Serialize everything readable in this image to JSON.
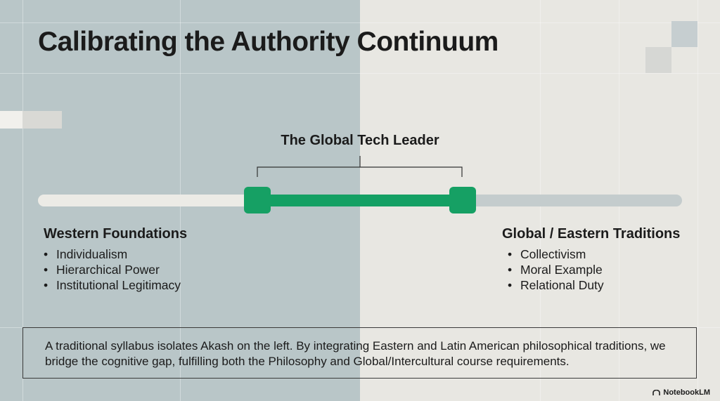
{
  "title": "Calibrating the Authority Continuum",
  "center_label": "The Global Tech Leader",
  "left": {
    "heading": "Western Foundations",
    "items": [
      "Individualism",
      "Hierarchical Power",
      "Institutional Legitimacy"
    ]
  },
  "right": {
    "heading": "Global / Eastern Traditions",
    "items": [
      "Collectivism",
      "Moral Example",
      "Relational Duty"
    ]
  },
  "footer": "A traditional syllabus isolates Akash on the left. By integrating Eastern and Latin American philosophical traditions, we bridge the cognitive gap, fulfilling both the Philosophy and Global/Intercultural course requirements.",
  "brand": "NotebookLM"
}
